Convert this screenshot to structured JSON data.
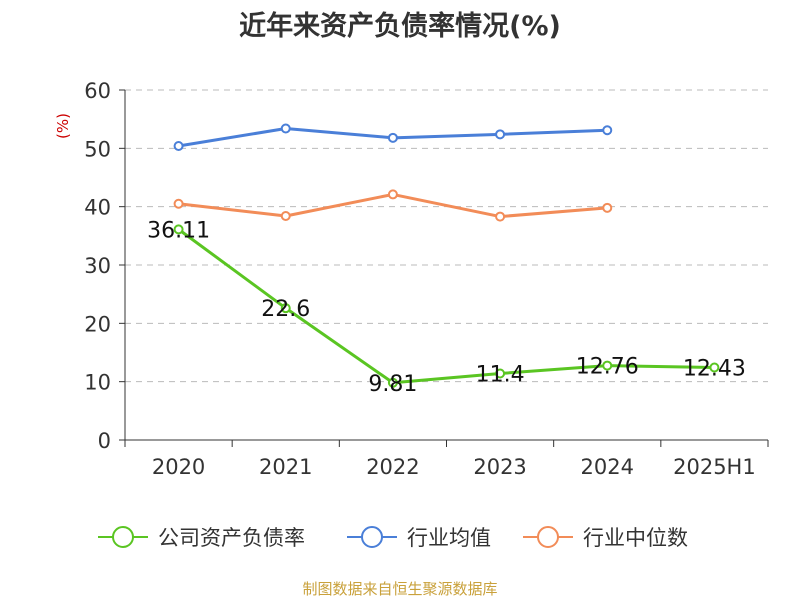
{
  "chart_data": {
    "type": "line",
    "title": "近年来资产负债率情况(%)",
    "ylabel": "(%)",
    "ylim": [
      0,
      60
    ],
    "yticks": [
      0,
      10,
      20,
      30,
      40,
      50,
      60
    ],
    "categories": [
      "2020",
      "2021",
      "2022",
      "2023",
      "2024",
      "2025H1"
    ],
    "grid": true,
    "legend_position": "bottom",
    "series": [
      {
        "name": "公司资产负债率",
        "color": "#5ac522",
        "values": [
          36.11,
          22.6,
          9.81,
          11.4,
          12.76,
          12.43
        ],
        "show_labels": true
      },
      {
        "name": "行业均值",
        "color": "#4a7fd8",
        "values": [
          50.4,
          53.4,
          51.8,
          52.4,
          53.1,
          null
        ],
        "show_labels": false
      },
      {
        "name": "行业中位数",
        "color": "#f28c58",
        "values": [
          40.5,
          38.4,
          42.1,
          38.3,
          39.8,
          null
        ],
        "show_labels": false
      }
    ]
  },
  "watermark": "制图数据来自恒生聚源数据库",
  "colors": {
    "axis": "#333333",
    "grid": "#bbbbbb",
    "ylabel": "#cc0000",
    "watermark": "#c9a13b"
  }
}
